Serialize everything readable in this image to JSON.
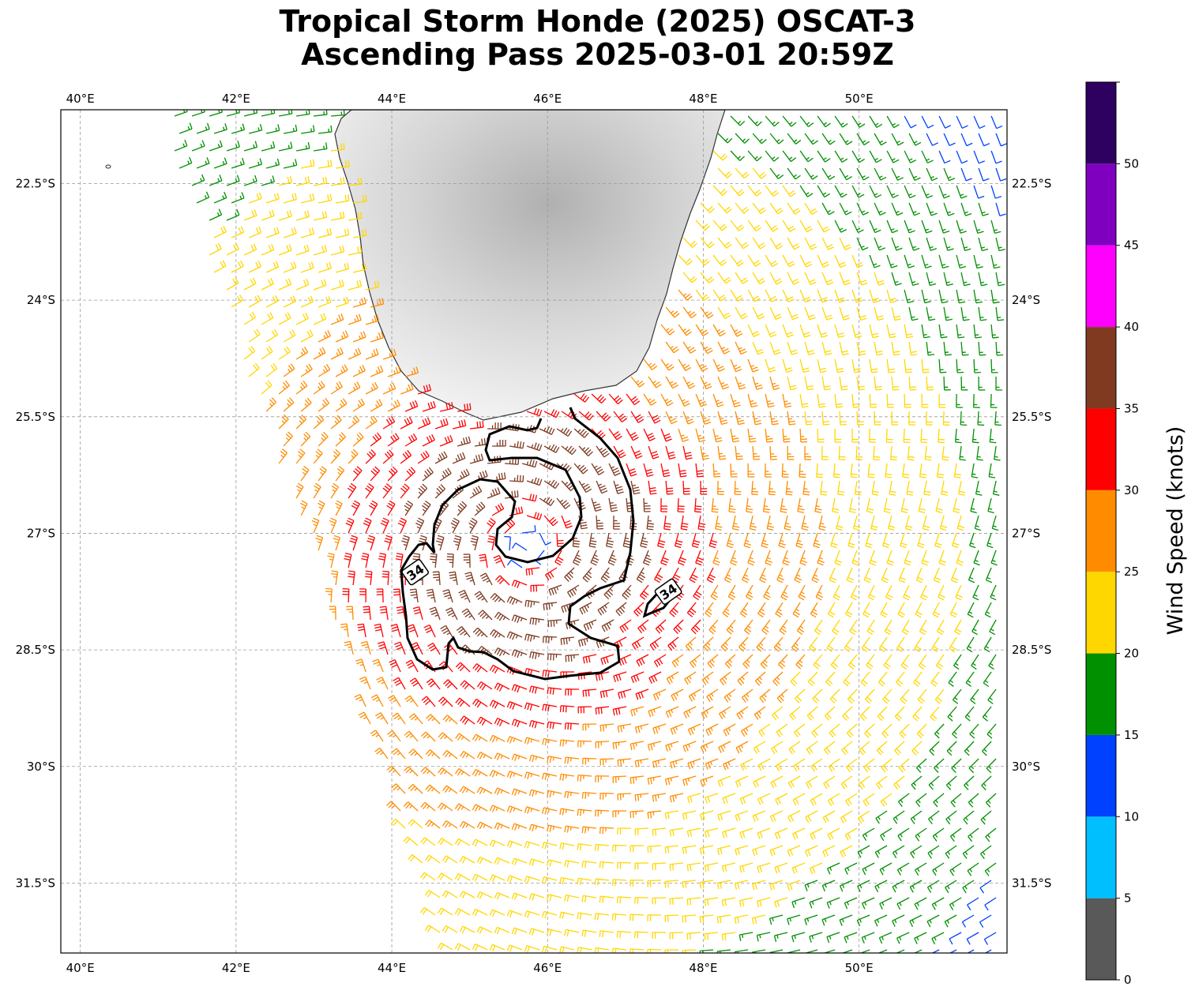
{
  "title": {
    "line1": "Tropical Storm Honde (2025) OSCAT-3",
    "line2": "Ascending Pass 2025-03-01 20:59Z"
  },
  "map": {
    "lon_range": [
      39.75,
      51.9
    ],
    "lat_range": [
      -32.4,
      -21.55
    ],
    "lon_ticks": [
      {
        "v": 40,
        "label": "40°E"
      },
      {
        "v": 42,
        "label": "42°E"
      },
      {
        "v": 44,
        "label": "44°E"
      },
      {
        "v": 46,
        "label": "46°E"
      },
      {
        "v": 48,
        "label": "48°E"
      },
      {
        "v": 50,
        "label": "50°E"
      }
    ],
    "lat_ticks": [
      {
        "v": -22.5,
        "label": "22.5°S"
      },
      {
        "v": -24,
        "label": "24°S"
      },
      {
        "v": -25.5,
        "label": "25.5°S"
      },
      {
        "v": -27,
        "label": "27°S"
      },
      {
        "v": -28.5,
        "label": "28.5°S"
      },
      {
        "v": -30,
        "label": "30°S"
      },
      {
        "v": -31.5,
        "label": "31.5°S"
      }
    ],
    "gridlines": true,
    "storm_center": {
      "lon": 45.75,
      "lat": -27.15
    },
    "contour_level": 34,
    "contour_labels": [
      {
        "text": "34",
        "lon": 44.3,
        "lat": -27.5
      },
      {
        "text": "34",
        "lon": 47.55,
        "lat": -27.75
      }
    ]
  },
  "colorbar": {
    "label": "Wind Speed (knots)",
    "bins": [
      {
        "min": 0,
        "max": 5,
        "color": "#595959"
      },
      {
        "min": 5,
        "max": 10,
        "color": "#00bfff"
      },
      {
        "min": 10,
        "max": 15,
        "color": "#0040ff"
      },
      {
        "min": 15,
        "max": 20,
        "color": "#009000"
      },
      {
        "min": 20,
        "max": 25,
        "color": "#ffd700"
      },
      {
        "min": 25,
        "max": 30,
        "color": "#ff8c00"
      },
      {
        "min": 30,
        "max": 35,
        "color": "#ff0000"
      },
      {
        "min": 35,
        "max": 40,
        "color": "#7f3a20"
      },
      {
        "min": 40,
        "max": 45,
        "color": "#ff00ff"
      },
      {
        "min": 45,
        "max": 50,
        "color": "#8000c0"
      },
      {
        "min": 50,
        "max": 55,
        "color": "#2e0060"
      }
    ],
    "tick_labels": [
      "0",
      "5",
      "10",
      "15",
      "20",
      "25",
      "30",
      "35",
      "40",
      "45",
      "50"
    ]
  }
}
